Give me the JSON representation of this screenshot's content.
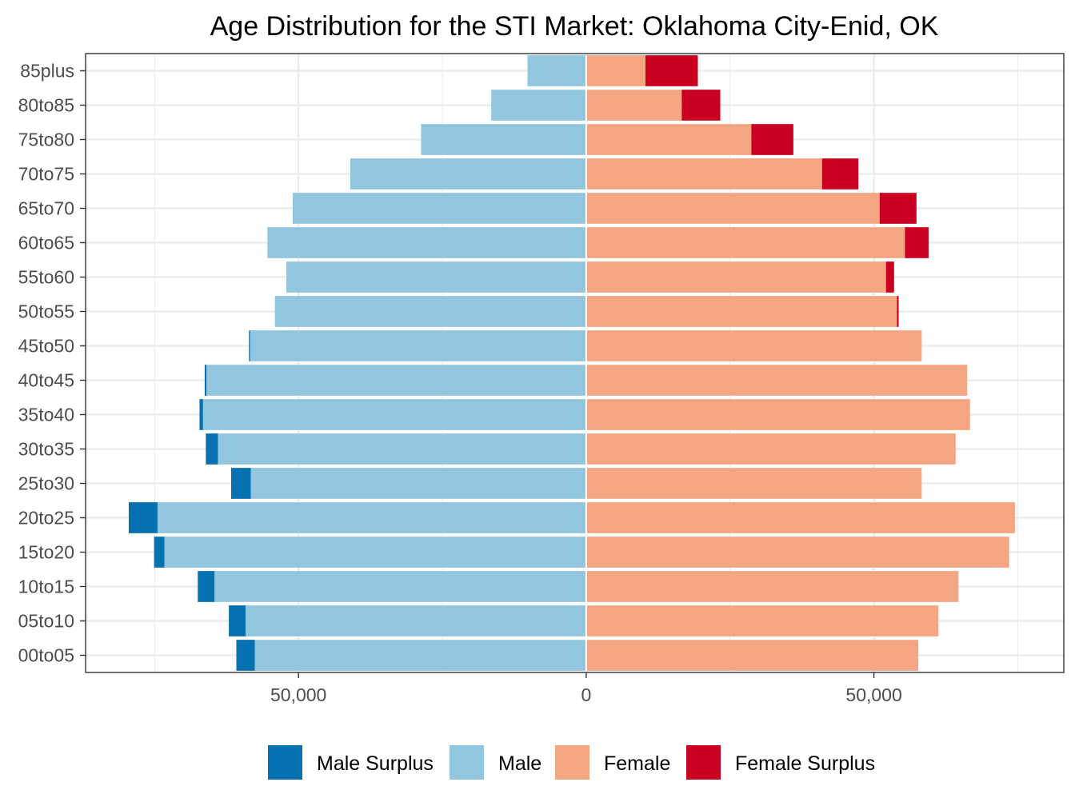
{
  "chart_data": {
    "type": "bar",
    "orientation": "horizontal",
    "title": "Age Distribution for the STI Market: Oklahoma City-Enid, OK",
    "xlabel": "",
    "ylabel": "",
    "xlim": [
      -87000,
      83000
    ],
    "x_ticks": [
      {
        "value": -50000,
        "label": "50,000"
      },
      {
        "value": 0,
        "label": "0"
      },
      {
        "value": 50000,
        "label": "50,000"
      }
    ],
    "categories": [
      "00to05",
      "05to10",
      "10to15",
      "15to20",
      "20to25",
      "25to30",
      "30to35",
      "35to40",
      "40to45",
      "45to50",
      "50to55",
      "55to60",
      "60to65",
      "65to70",
      "70to75",
      "75to80",
      "80to85",
      "85plus"
    ],
    "series": [
      {
        "name": "Male Surplus",
        "color": "#0571b0",
        "values": [
          3200,
          2900,
          2900,
          1800,
          5000,
          3400,
          2100,
          600,
          300,
          200,
          0,
          0,
          0,
          0,
          0,
          0,
          0,
          0
        ]
      },
      {
        "name": "Male",
        "color": "#92c5de",
        "values": [
          57600,
          59200,
          64600,
          73300,
          74500,
          58300,
          64000,
          66600,
          66000,
          58400,
          54100,
          52100,
          55400,
          51000,
          41000,
          28700,
          16500,
          10200
        ]
      },
      {
        "name": "Female",
        "color": "#f4a582",
        "values": [
          57700,
          61200,
          64700,
          73500,
          74500,
          58300,
          64200,
          66700,
          66200,
          58300,
          54000,
          52100,
          55400,
          51000,
          41000,
          28700,
          16600,
          10300
        ]
      },
      {
        "name": "Female Surplus",
        "color": "#ca0020",
        "values": [
          0,
          0,
          0,
          0,
          0,
          0,
          0,
          0,
          0,
          0,
          300,
          1400,
          4100,
          6400,
          6300,
          7300,
          6700,
          9100
        ]
      }
    ],
    "grid": true,
    "legend_position": "bottom"
  }
}
